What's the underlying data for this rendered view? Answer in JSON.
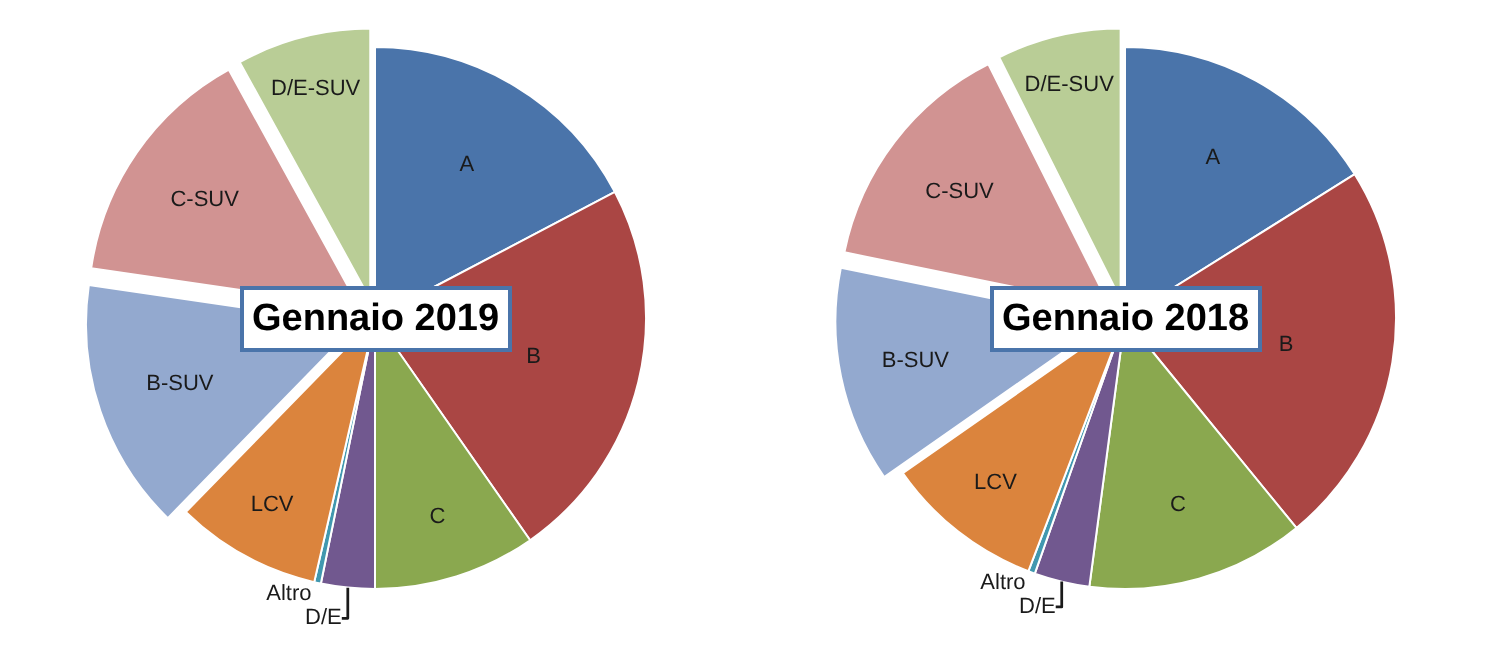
{
  "chart_data": [
    {
      "type": "pie",
      "title": "Gennaio 2019",
      "categories": [
        "A",
        "B",
        "C",
        "D/E",
        "Altro",
        "LCV",
        "B-SUV",
        "C-SUV",
        "D/E-SUV"
      ],
      "values": [
        17.3,
        23,
        9.7,
        3.2,
        0.4,
        8.7,
        15,
        14.7,
        8
      ],
      "colors": [
        "#4a74aa",
        "#aa4644",
        "#8aa84f",
        "#71588f",
        "#4198af",
        "#db843d",
        "#93a9cf",
        "#d19392",
        "#b9cd96"
      ]
    },
    {
      "type": "pie",
      "title": "Gennaio 2018",
      "categories": [
        "A",
        "B",
        "C",
        "D/E",
        "Altro",
        "LCV",
        "B-SUV",
        "C-SUV",
        "D/E-SUV"
      ],
      "values": [
        16.1,
        23,
        13,
        3.3,
        0.4,
        9.5,
        12.9,
        14.4,
        7.4
      ],
      "colors": [
        "#4a74aa",
        "#aa4644",
        "#8aa84f",
        "#71588f",
        "#4198af",
        "#db843d",
        "#93a9cf",
        "#d19392",
        "#b9cd96"
      ]
    }
  ]
}
